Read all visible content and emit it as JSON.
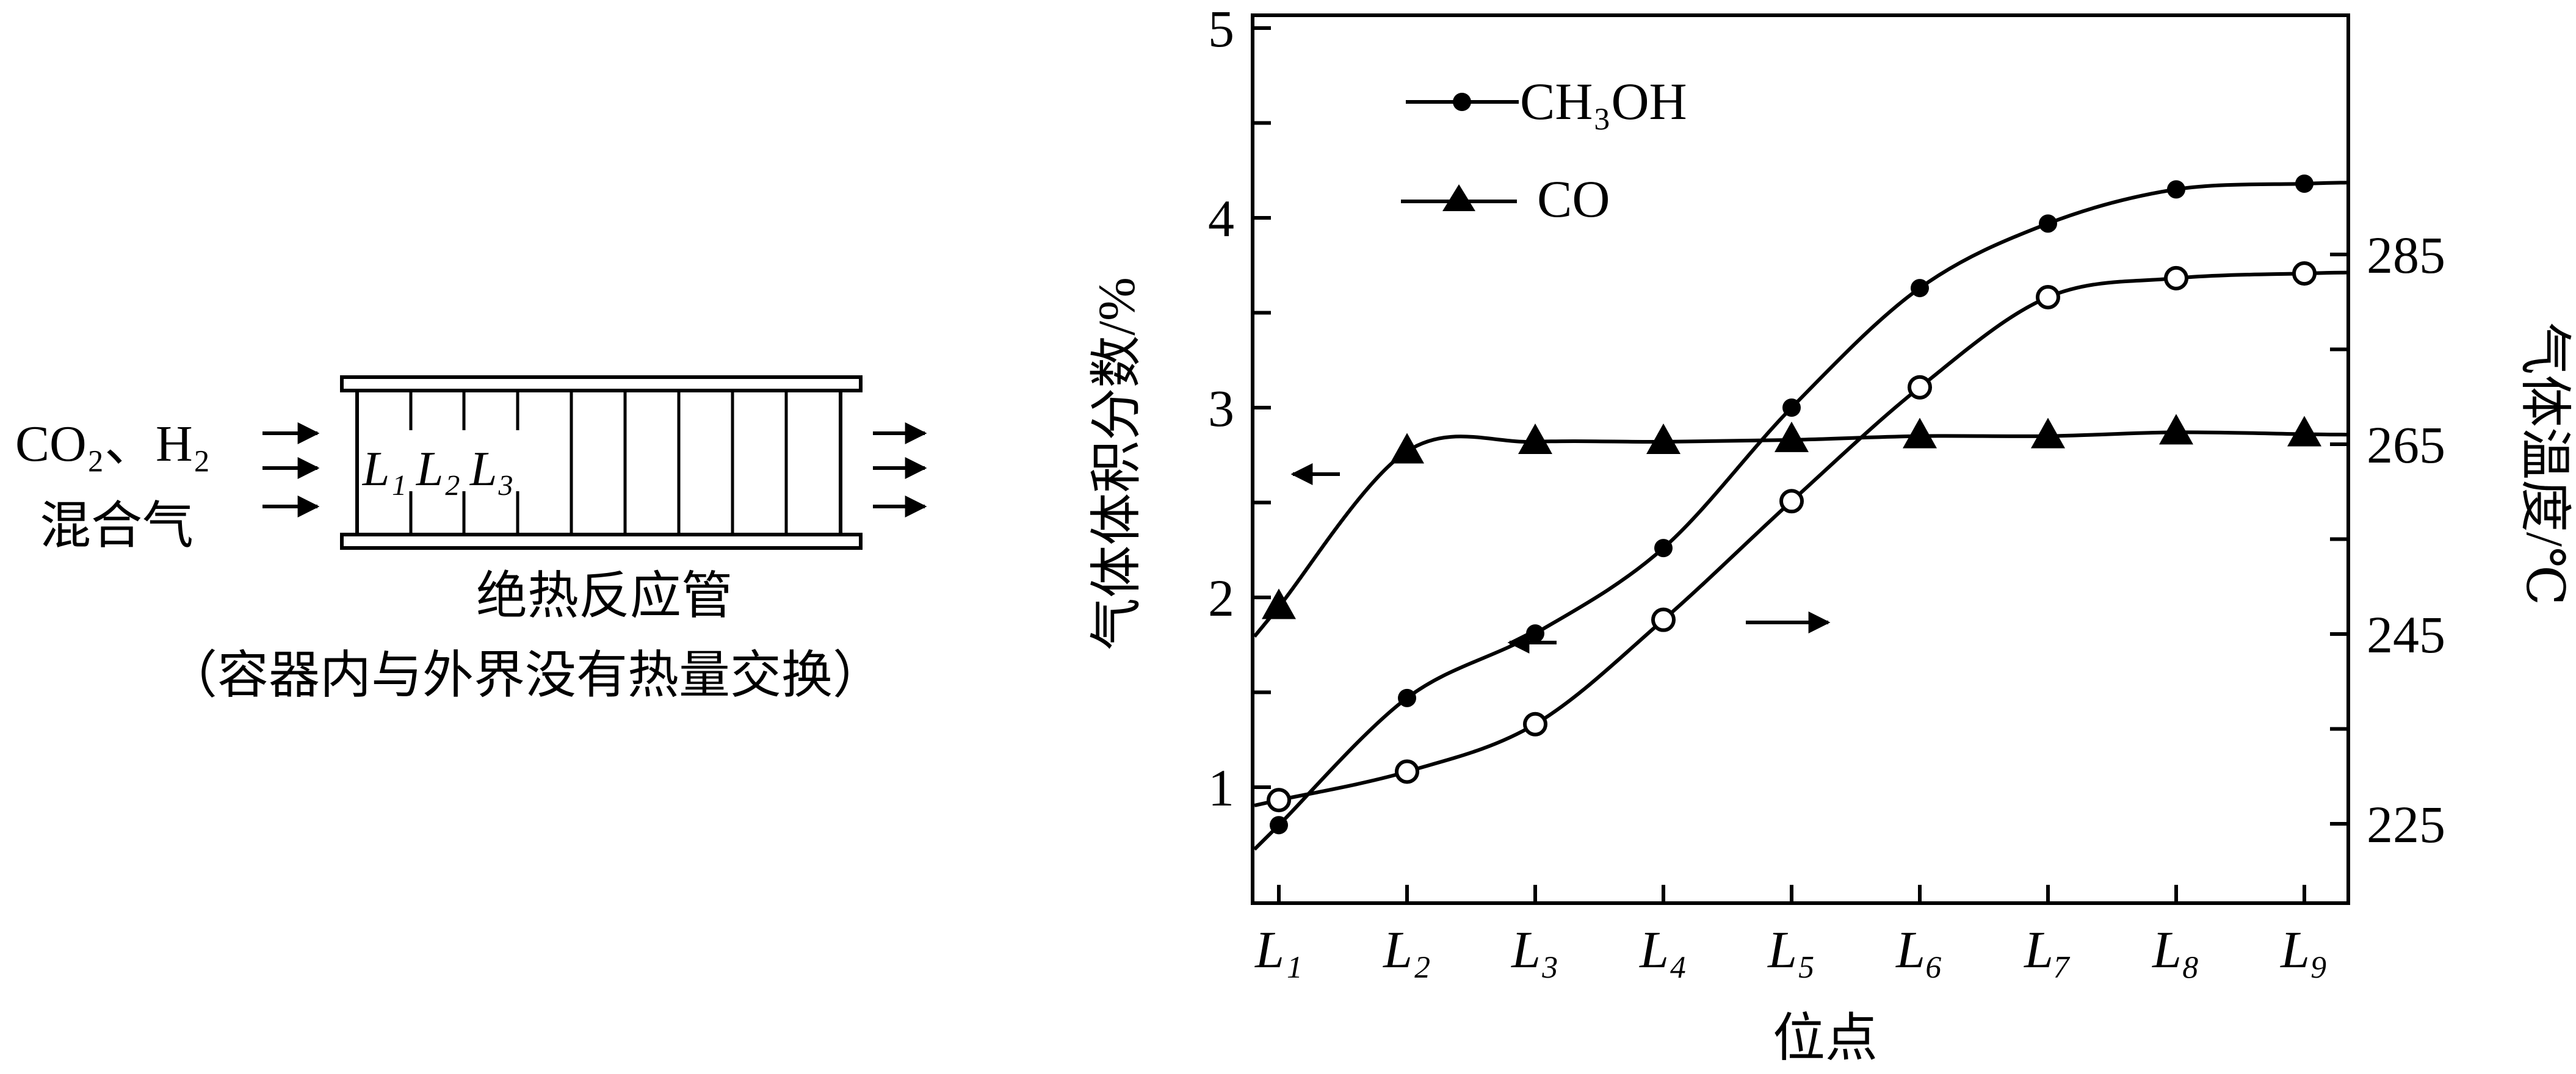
{
  "reactor": {
    "inlet_label_line1": "CO₂、H₂",
    "inlet_label_line2": "混合气",
    "position_labels": [
      "L₁",
      "L₂",
      "L₃"
    ],
    "caption_line1": "绝热反应管",
    "caption_line2": "（容器内与外界没有热量交换）"
  },
  "chart_data": {
    "type": "line",
    "x": [
      "L₁",
      "L₂",
      "L₃",
      "L₄",
      "L₅",
      "L₆",
      "L₇",
      "L₈",
      "L₉"
    ],
    "xlabel": "位点",
    "ylabel_left": "气体体积分数/%",
    "ylabel_right": "气体温度/℃",
    "ylim_left": [
      0.6,
      5.2
    ],
    "ylim_right": [
      218,
      288
    ],
    "yticks_left": [
      1,
      2,
      3,
      4,
      5
    ],
    "yticks_right": [
      225,
      245,
      265,
      285
    ],
    "legend_position": "top-left",
    "series": [
      {
        "name": "CH₃OH",
        "axis": "left",
        "marker": "filled-circle",
        "values": [
          0.8,
          1.47,
          1.81,
          2.26,
          3.0,
          3.63,
          3.97,
          4.15,
          4.18
        ]
      },
      {
        "name": "CO",
        "axis": "left",
        "marker": "filled-triangle",
        "values": [
          1.95,
          2.77,
          2.82,
          2.82,
          2.83,
          2.85,
          2.85,
          2.87,
          2.86
        ]
      },
      {
        "axis": "right",
        "marker": "open-circle",
        "values": [
          227.5,
          230.5,
          235.5,
          246.5,
          259.0,
          271.0,
          280.5,
          282.5,
          283.0
        ]
      }
    ],
    "annotations": [
      {
        "type": "arrow",
        "points_to": "left-axis",
        "series_index": 1
      },
      {
        "type": "arrow",
        "points_to": "left-axis",
        "series_index": 0
      },
      {
        "type": "arrow",
        "points_to": "right-axis",
        "series_index": 2
      }
    ]
  }
}
